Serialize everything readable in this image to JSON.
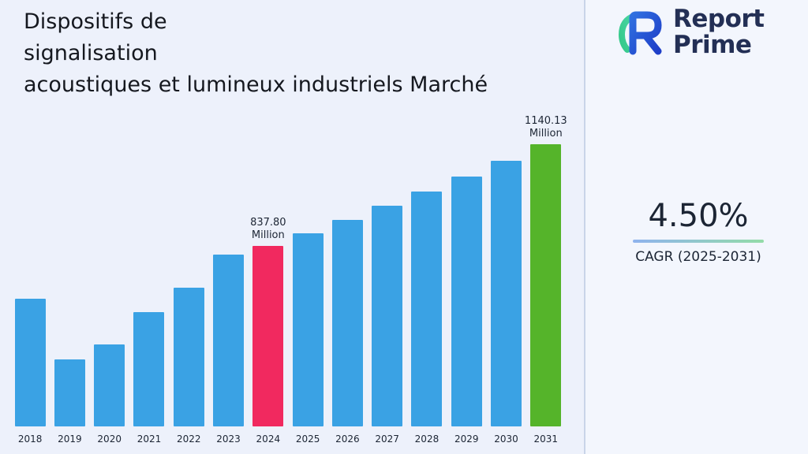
{
  "page": {
    "background": "#edf1fb",
    "panel_background": "#f3f6fd",
    "divider_color": "#c9d4e8",
    "text_color": "#1c2534"
  },
  "header": {
    "title_lines": [
      "Dispositifs de",
      "signalisation",
      "acoustiques et lumineux industriels Marché"
    ],
    "title_color": "#15181f"
  },
  "brand": {
    "name_line1": "Report",
    "name_line2": "Prime",
    "text_color": "#232f55",
    "mark_blue": "#2f6fe0",
    "mark_blue_dark": "#1e3ec8",
    "mark_green": "#35c98a",
    "mark_teal": "#4ad6a7"
  },
  "stats": {
    "cagr_value": "4.50%",
    "cagr_label": "CAGR (2025-2031)",
    "value_color": "#1c2534",
    "underline_from": "#8fb3ee",
    "underline_to": "#93dca8"
  },
  "chart_data": {
    "type": "bar",
    "title": "Dispositifs de signalisation acoustiques et lumineux industriels Marché",
    "unit": "Million",
    "categories": [
      "2018",
      "2019",
      "2020",
      "2021",
      "2022",
      "2023",
      "2024",
      "2025",
      "2026",
      "2027",
      "2028",
      "2029",
      "2030",
      "2031"
    ],
    "values": [
      680,
      500,
      545,
      640,
      712,
      812,
      837.8,
      875.5,
      914.9,
      956.08,
      999.1,
      1044.06,
      1091.04,
      1140.13
    ],
    "annotations": [
      {
        "year": "2024",
        "value": "837.80",
        "unit": "Million"
      },
      {
        "year": "2031",
        "value": "1140.13",
        "unit": "Million"
      }
    ],
    "colors": {
      "default": "#3aa2e4",
      "2024": "#f1295f",
      "2031": "#55b42a"
    },
    "xlabel": "",
    "ylabel": "",
    "ylim": [
      300,
      1180
    ],
    "grid": false,
    "legend": false
  }
}
